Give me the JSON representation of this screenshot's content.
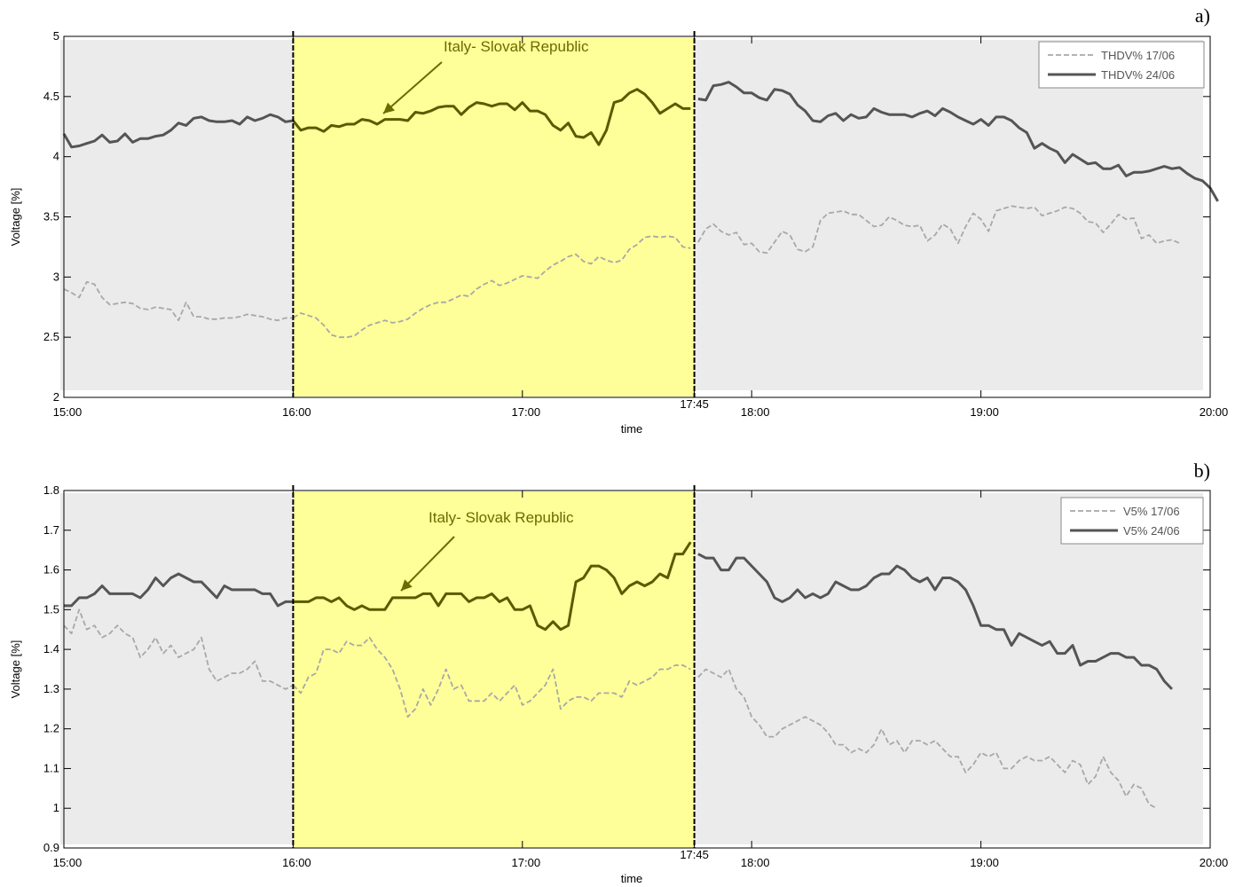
{
  "chart_data": [
    {
      "type": "line",
      "panel_label": "a)",
      "xlabel": "time",
      "ylabel": "Voltage [%]",
      "ylim": [
        2,
        5
      ],
      "yticks": [
        "2",
        "2.5",
        "3",
        "3.5",
        "4",
        "4.5",
        "5"
      ],
      "xlim": [
        15.0,
        20.0
      ],
      "xticks": [
        {
          "t": 15.0,
          "label": "15:00"
        },
        {
          "t": 16.0,
          "label": "16:00"
        },
        {
          "t": 17.0,
          "label": "17:00"
        },
        {
          "t": 17.75,
          "label": "17:45"
        },
        {
          "t": 18.0,
          "label": "18:00"
        },
        {
          "t": 19.0,
          "label": "19:00"
        },
        {
          "t": 20.0,
          "label": "20:00"
        }
      ],
      "highlight": {
        "start": 16.0,
        "end": 17.75,
        "color": "#ffff99"
      },
      "background": "#ebebeb",
      "annotation": "Italy- Slovak Republic",
      "legend_position": "top-right",
      "series": [
        {
          "name": "THDV% 17/06",
          "style": "dashed",
          "color": "#a8a8a8",
          "start": 15.0,
          "step_minutes": 2,
          "values": [
            2.9,
            2.87,
            2.83,
            2.96,
            2.94,
            2.83,
            2.77,
            2.78,
            2.79,
            2.78,
            2.74,
            2.73,
            2.75,
            2.74,
            2.73,
            2.64,
            2.79,
            2.67,
            2.67,
            2.65,
            2.65,
            2.66,
            2.66,
            2.67,
            2.69,
            2.68,
            2.67,
            2.65,
            2.64,
            2.66,
            2.66,
            2.7,
            2.68,
            2.66,
            2.6,
            2.52,
            2.5,
            2.5,
            2.51,
            2.56,
            2.6,
            2.62,
            2.64,
            2.62,
            2.63,
            2.65,
            2.7,
            2.74,
            2.77,
            2.79,
            2.79,
            2.82,
            2.85,
            2.84,
            2.9,
            2.94,
            2.97,
            2.93,
            2.95,
            2.98,
            3.01,
            3.0,
            2.99,
            3.05,
            3.1,
            3.13,
            3.17,
            3.19,
            3.13,
            3.11,
            3.17,
            3.14,
            3.12,
            3.14,
            3.23,
            3.27,
            3.33,
            3.34,
            3.33,
            3.34,
            3.33,
            3.25,
            3.24,
            3.29,
            3.4,
            3.44,
            3.38,
            3.35,
            3.37,
            3.27,
            3.28,
            3.21,
            3.2,
            3.29,
            3.38,
            3.35,
            3.23,
            3.21,
            3.25,
            3.47,
            3.53,
            3.54,
            3.55,
            3.52,
            3.52,
            3.47,
            3.42,
            3.43,
            3.5,
            3.47,
            3.43,
            3.42,
            3.43,
            3.3,
            3.35,
            3.44,
            3.4,
            3.28,
            3.42,
            3.53,
            3.48,
            3.38,
            3.55,
            3.57,
            3.59,
            3.58,
            3.57,
            3.58,
            3.51,
            3.53,
            3.55,
            3.58,
            3.57,
            3.53,
            3.46,
            3.45,
            3.37,
            3.44,
            3.52,
            3.48,
            3.49,
            3.32,
            3.35,
            3.28,
            3.3,
            3.31,
            3.28
          ]
        },
        {
          "name": "THDV% 24/06",
          "style": "solid",
          "color": "#555555",
          "highlight_color": "#5a5a00",
          "start": 15.0,
          "step_minutes": 2,
          "values": [
            4.19,
            4.08,
            4.09,
            4.11,
            4.13,
            4.18,
            4.12,
            4.13,
            4.19,
            4.12,
            4.15,
            4.15,
            4.17,
            4.18,
            4.22,
            4.28,
            4.26,
            4.32,
            4.33,
            4.3,
            4.29,
            4.29,
            4.3,
            4.27,
            4.33,
            4.3,
            4.32,
            4.35,
            4.33,
            4.29,
            4.3,
            4.22,
            4.24,
            4.24,
            4.21,
            4.26,
            4.25,
            4.27,
            4.27,
            4.31,
            4.3,
            4.27,
            4.31,
            4.31,
            4.31,
            4.3,
            4.37,
            4.36,
            4.38,
            4.41,
            4.42,
            4.42,
            4.35,
            4.41,
            4.45,
            4.44,
            4.42,
            4.44,
            4.44,
            4.39,
            4.45,
            4.38,
            4.38,
            4.35,
            4.26,
            4.22,
            4.28,
            4.17,
            4.16,
            4.2,
            4.1,
            4.22,
            4.45,
            4.47,
            4.53,
            4.56,
            4.52,
            4.45,
            4.36,
            4.4,
            4.44,
            4.4,
            4.4,
            4.48,
            4.47,
            4.59,
            4.6,
            4.62,
            4.58,
            4.53,
            4.53,
            4.49,
            4.47,
            4.56,
            4.55,
            4.52,
            4.43,
            4.38,
            4.3,
            4.29,
            4.34,
            4.36,
            4.3,
            4.35,
            4.32,
            4.33,
            4.4,
            4.37,
            4.35,
            4.35,
            4.35,
            4.33,
            4.36,
            4.38,
            4.34,
            4.4,
            4.37,
            4.33,
            4.3,
            4.27,
            4.31,
            4.26,
            4.33,
            4.33,
            4.3,
            4.24,
            4.2,
            4.07,
            4.11,
            4.07,
            4.04,
            3.95,
            4.02,
            3.98,
            3.94,
            3.95,
            3.9,
            3.9,
            3.93,
            3.84,
            3.87,
            3.87,
            3.88,
            3.9,
            3.92,
            3.9,
            3.91,
            3.86,
            3.82,
            3.8,
            3.74,
            3.63
          ]
        }
      ]
    },
    {
      "type": "line",
      "panel_label": "b)",
      "xlabel": "time",
      "ylabel": "Voltage [%]",
      "ylim": [
        0.9,
        1.8
      ],
      "yticks": [
        "0.9",
        "1",
        "1.1",
        "1.2",
        "1.3",
        "1.4",
        "1.5",
        "1.6",
        "1.7",
        "1.8"
      ],
      "xlim": [
        15.0,
        20.0
      ],
      "xticks": [
        {
          "t": 15.0,
          "label": "15:00"
        },
        {
          "t": 16.0,
          "label": "16:00"
        },
        {
          "t": 17.0,
          "label": "17:00"
        },
        {
          "t": 17.75,
          "label": "17:45"
        },
        {
          "t": 18.0,
          "label": "18:00"
        },
        {
          "t": 19.0,
          "label": "19:00"
        },
        {
          "t": 20.0,
          "label": "20:00"
        }
      ],
      "highlight": {
        "start": 16.0,
        "end": 17.75,
        "color": "#ffff99"
      },
      "background": "#ebebeb",
      "annotation": "Italy- Slovak Republic",
      "legend_position": "top-right",
      "series": [
        {
          "name": "V5% 17/06",
          "style": "dashed",
          "color": "#a8a8a8",
          "start": 15.0,
          "step_minutes": 2,
          "values": [
            1.46,
            1.44,
            1.5,
            1.45,
            1.46,
            1.43,
            1.44,
            1.46,
            1.44,
            1.43,
            1.38,
            1.4,
            1.43,
            1.39,
            1.41,
            1.38,
            1.39,
            1.4,
            1.43,
            1.35,
            1.32,
            1.33,
            1.34,
            1.34,
            1.35,
            1.37,
            1.32,
            1.32,
            1.31,
            1.3,
            1.31,
            1.29,
            1.33,
            1.34,
            1.4,
            1.4,
            1.39,
            1.42,
            1.41,
            1.41,
            1.43,
            1.4,
            1.38,
            1.35,
            1.3,
            1.23,
            1.25,
            1.3,
            1.26,
            1.3,
            1.35,
            1.3,
            1.31,
            1.27,
            1.27,
            1.27,
            1.29,
            1.27,
            1.29,
            1.31,
            1.26,
            1.27,
            1.29,
            1.31,
            1.35,
            1.25,
            1.27,
            1.28,
            1.28,
            1.27,
            1.29,
            1.29,
            1.29,
            1.28,
            1.32,
            1.31,
            1.32,
            1.33,
            1.35,
            1.35,
            1.36,
            1.36,
            1.35,
            1.33,
            1.35,
            1.34,
            1.33,
            1.35,
            1.3,
            1.28,
            1.23,
            1.21,
            1.18,
            1.18,
            1.2,
            1.21,
            1.22,
            1.23,
            1.22,
            1.21,
            1.19,
            1.16,
            1.16,
            1.14,
            1.15,
            1.14,
            1.16,
            1.2,
            1.16,
            1.17,
            1.14,
            1.17,
            1.17,
            1.16,
            1.17,
            1.15,
            1.13,
            1.13,
            1.09,
            1.11,
            1.14,
            1.13,
            1.14,
            1.1,
            1.1,
            1.12,
            1.13,
            1.12,
            1.12,
            1.13,
            1.11,
            1.09,
            1.12,
            1.11,
            1.06,
            1.08,
            1.13,
            1.09,
            1.07,
            1.03,
            1.06,
            1.05,
            1.01,
            1.0
          ]
        },
        {
          "name": "V5% 24/06",
          "style": "solid",
          "color": "#555555",
          "highlight_color": "#5a5a00",
          "start": 15.0,
          "step_minutes": 2,
          "values": [
            1.51,
            1.51,
            1.53,
            1.53,
            1.54,
            1.56,
            1.54,
            1.54,
            1.54,
            1.54,
            1.53,
            1.55,
            1.58,
            1.56,
            1.58,
            1.59,
            1.58,
            1.57,
            1.57,
            1.55,
            1.53,
            1.56,
            1.55,
            1.55,
            1.55,
            1.55,
            1.54,
            1.54,
            1.51,
            1.52,
            1.52,
            1.52,
            1.52,
            1.53,
            1.53,
            1.52,
            1.53,
            1.51,
            1.5,
            1.51,
            1.5,
            1.5,
            1.5,
            1.53,
            1.53,
            1.53,
            1.53,
            1.54,
            1.54,
            1.51,
            1.54,
            1.54,
            1.54,
            1.52,
            1.53,
            1.53,
            1.54,
            1.52,
            1.53,
            1.5,
            1.5,
            1.51,
            1.46,
            1.45,
            1.47,
            1.45,
            1.46,
            1.57,
            1.58,
            1.61,
            1.61,
            1.6,
            1.58,
            1.54,
            1.56,
            1.57,
            1.56,
            1.57,
            1.59,
            1.58,
            1.64,
            1.64,
            1.67,
            1.64,
            1.63,
            1.63,
            1.6,
            1.6,
            1.63,
            1.63,
            1.61,
            1.59,
            1.57,
            1.53,
            1.52,
            1.53,
            1.55,
            1.53,
            1.54,
            1.53,
            1.54,
            1.57,
            1.56,
            1.55,
            1.55,
            1.56,
            1.58,
            1.59,
            1.59,
            1.61,
            1.6,
            1.58,
            1.57,
            1.58,
            1.55,
            1.58,
            1.58,
            1.57,
            1.55,
            1.51,
            1.46,
            1.46,
            1.45,
            1.45,
            1.41,
            1.44,
            1.43,
            1.42,
            1.41,
            1.42,
            1.39,
            1.39,
            1.41,
            1.36,
            1.37,
            1.37,
            1.38,
            1.39,
            1.39,
            1.38,
            1.38,
            1.36,
            1.36,
            1.35,
            1.32,
            1.3
          ]
        }
      ]
    }
  ]
}
